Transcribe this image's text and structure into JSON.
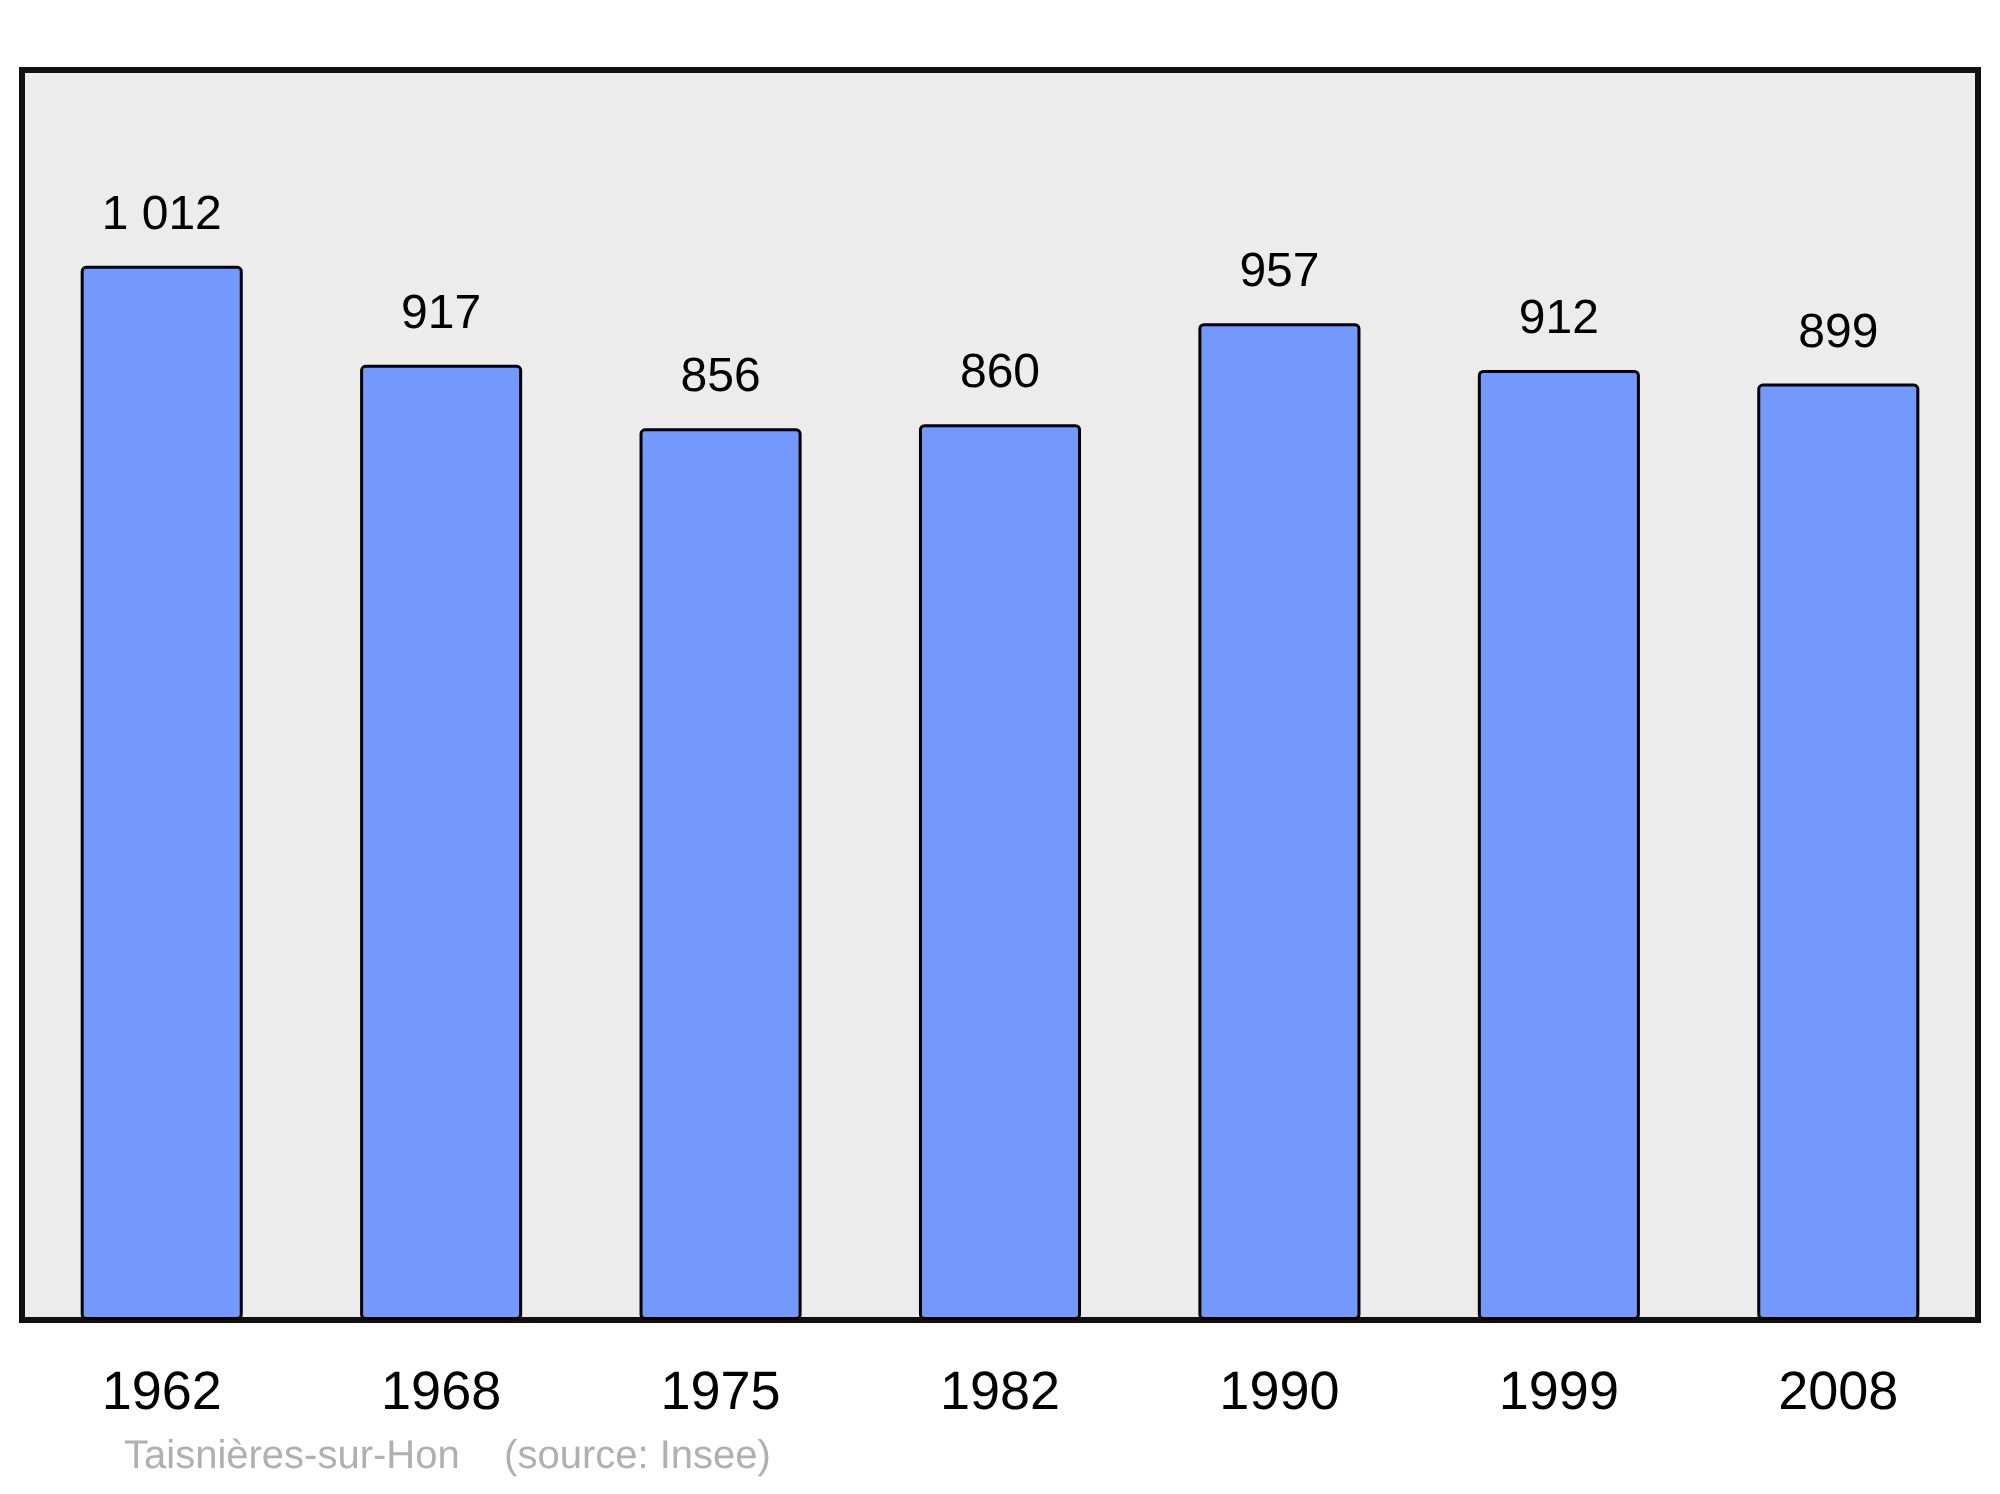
{
  "chart_data": {
    "type": "bar",
    "categories": [
      "1962",
      "1968",
      "1975",
      "1982",
      "1990",
      "1999",
      "2008"
    ],
    "values": [
      1012,
      917,
      856,
      860,
      957,
      912,
      899
    ],
    "value_labels": [
      "1 012",
      "917",
      "856",
      "860",
      "957",
      "912",
      "899"
    ],
    "color": "#7399ff",
    "grid": false,
    "tick_labels": "x",
    "annotations": [
      "Taisnières-sur-Hon    (source: Insee)"
    ]
  }
}
